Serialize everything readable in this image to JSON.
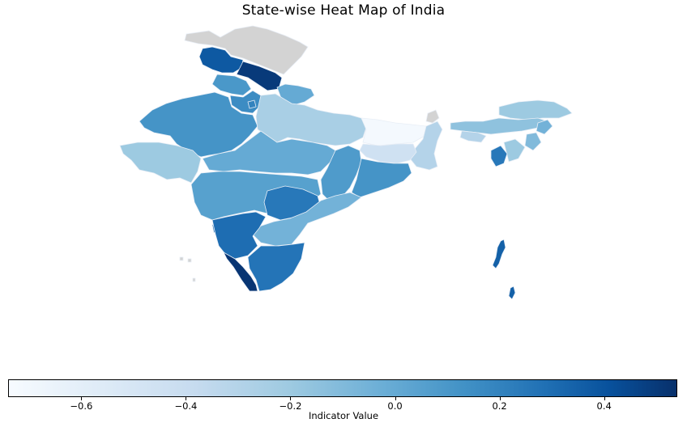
{
  "title": "State-wise Heat Map of India",
  "colorbar": {
    "label": "Indicator Value",
    "min": -0.74,
    "max": 0.54,
    "ticks": [
      {
        "value": -0.6,
        "label": "−0.6"
      },
      {
        "value": -0.4,
        "label": "−0.4"
      },
      {
        "value": -0.2,
        "label": "−0.2"
      },
      {
        "value": 0.0,
        "label": "0.0"
      },
      {
        "value": 0.2,
        "label": "0.2"
      },
      {
        "value": 0.4,
        "label": "0.4"
      }
    ],
    "colormap": "Blues"
  },
  "no_data_color": "#d3d3d3",
  "chart_data": {
    "type": "choropleth",
    "title": "State-wise Heat Map of India",
    "colorbar_label": "Indicator Value",
    "value_range": [
      -0.74,
      0.54
    ],
    "regions": [
      {
        "region": "jammu-kashmir",
        "value": 0.38
      },
      {
        "region": "himachal-pradesh",
        "value": 0.5
      },
      {
        "region": "ladakh",
        "value": null
      },
      {
        "region": "punjab",
        "value": 0.1
      },
      {
        "region": "haryana",
        "value": 0.16
      },
      {
        "region": "delhi",
        "value": 0.2
      },
      {
        "region": "uttarakhand",
        "value": 0.0
      },
      {
        "region": "rajasthan",
        "value": 0.12
      },
      {
        "region": "uttar-pradesh",
        "value": -0.25
      },
      {
        "region": "bihar",
        "value": -0.72
      },
      {
        "region": "sikkim",
        "value": null
      },
      {
        "region": "gujarat",
        "value": -0.2
      },
      {
        "region": "madhya-pradesh",
        "value": 0.0
      },
      {
        "region": "jharkhand",
        "value": -0.45
      },
      {
        "region": "west-bengal",
        "value": -0.3
      },
      {
        "region": "chhattisgarh",
        "value": 0.08
      },
      {
        "region": "odisha",
        "value": 0.12
      },
      {
        "region": "maharashtra",
        "value": 0.05
      },
      {
        "region": "telangana",
        "value": 0.25
      },
      {
        "region": "andhra-pradesh",
        "value": -0.05
      },
      {
        "region": "karnataka",
        "value": 0.3
      },
      {
        "region": "goa",
        "value": 0.3
      },
      {
        "region": "kerala",
        "value": 0.52
      },
      {
        "region": "tamil-nadu",
        "value": 0.27
      },
      {
        "region": "arunachal-pradesh",
        "value": -0.2
      },
      {
        "region": "assam",
        "value": -0.15
      },
      {
        "region": "meghalaya",
        "value": -0.3
      },
      {
        "region": "nagaland",
        "value": -0.05
      },
      {
        "region": "manipur",
        "value": -0.1
      },
      {
        "region": "mizoram",
        "value": -0.2
      },
      {
        "region": "tripura",
        "value": 0.25
      },
      {
        "region": "andaman-nicobar",
        "value": 0.35
      },
      {
        "region": "lakshadweep",
        "value": null
      }
    ]
  }
}
